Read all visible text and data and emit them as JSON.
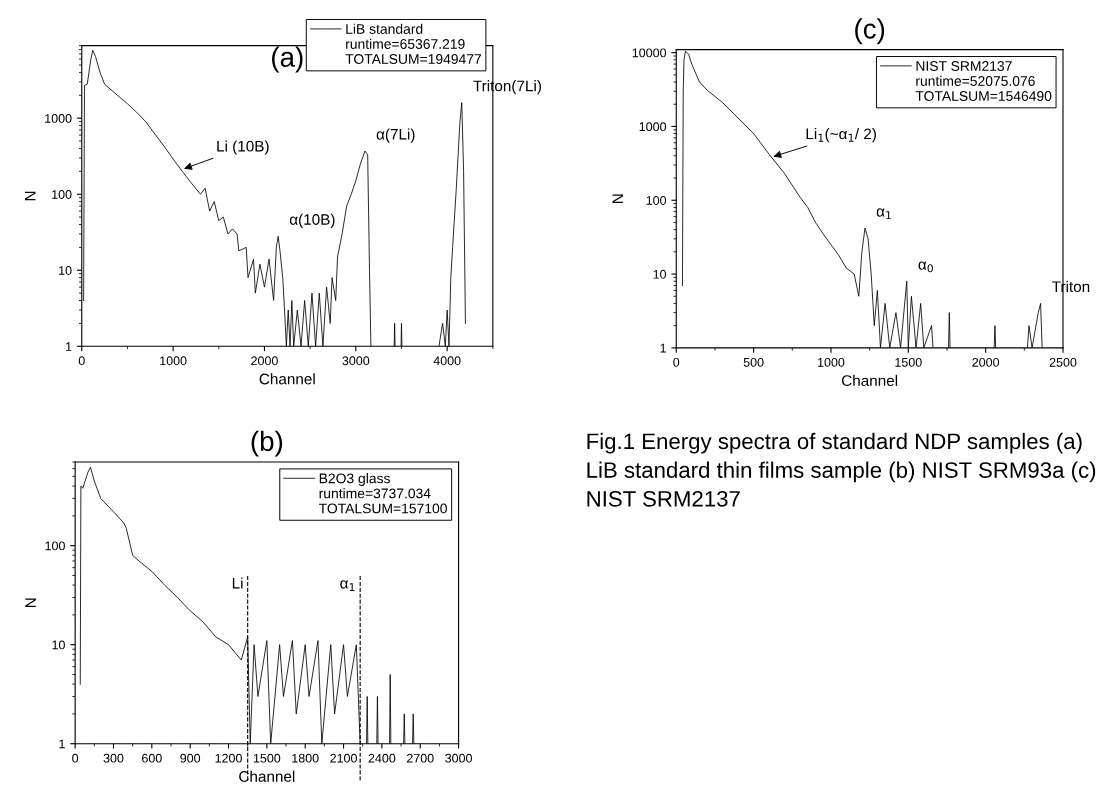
{
  "chart_data": [
    {
      "type": "line",
      "title": "(a)",
      "xlabel": "Channel",
      "ylabel": "N",
      "log": "y",
      "grid": false,
      "legend": "top right",
      "marker": "none",
      "xlim": [
        0,
        4500
      ],
      "xticks": [
        0,
        1000,
        2000,
        3000,
        4000
      ],
      "ylim": [
        1,
        9000
      ],
      "yticks": [
        1,
        10,
        100,
        1000
      ],
      "annotations": [
        "runtime=65367.219",
        "TOTALSUM=1949477",
        {
          "text": "Li (10B)",
          "x": 1090,
          "y": 210
        },
        {
          "text": "α(10B)",
          "x": 2150,
          "y": 28
        },
        {
          "text": "α(7Li)",
          "x": 3100,
          "y": 370
        },
        {
          "text": "Triton(7Li)",
          "x": 4160,
          "y": 1600
        }
      ],
      "series": [
        {
          "name": "LiB standard",
          "color": "#000000",
          "x": [
            20,
            30,
            60,
            100,
            120,
            150,
            200,
            250,
            350,
            500,
            600,
            700,
            800,
            900,
            1000,
            1100,
            1200,
            1300,
            1350,
            1400,
            1450,
            1500,
            1550,
            1600,
            1650,
            1700,
            1720,
            1800,
            1820,
            1880,
            1900,
            1950,
            2000,
            2050,
            2100,
            2130,
            2150,
            2170,
            2200,
            2220,
            2240,
            2260,
            2280,
            2300,
            2320,
            2360,
            2400,
            2440,
            2480,
            2520,
            2560,
            2600,
            2640,
            2680,
            2720,
            2740,
            2780,
            2800,
            2850,
            2900,
            2950,
            3000,
            3050,
            3100,
            3130,
            3150,
            3165,
            3200,
            3420,
            3425,
            3430,
            3450,
            3495,
            3500,
            3505,
            3600,
            3910,
            3950,
            3980,
            4000,
            4020,
            4040,
            4060,
            4100,
            4140,
            4160,
            4180,
            4200
          ],
          "values": [
            4,
            2700,
            2800,
            6000,
            7800,
            6500,
            4000,
            2800,
            2200,
            1550,
            1200,
            900,
            620,
            430,
            290,
            200,
            140,
            100,
            120,
            60,
            80,
            45,
            50,
            30,
            35,
            30,
            18,
            20,
            8,
            14,
            5,
            12,
            6,
            14,
            4,
            20,
            28,
            18,
            8,
            3,
            1,
            3,
            1,
            4,
            1,
            3,
            1,
            4,
            1,
            5,
            1,
            5,
            1,
            6,
            2,
            8,
            4,
            15,
            30,
            70,
            100,
            150,
            250,
            370,
            330,
            10,
            1,
            null,
            1,
            2,
            1,
            null,
            1,
            2,
            1,
            null,
            1,
            2,
            1,
            3,
            1,
            8,
            20,
            120,
            900,
            1600,
            200,
            2
          ]
        }
      ]
    },
    {
      "type": "line",
      "title": "(c)",
      "xlabel": "Channel",
      "ylabel": "N",
      "log": "y",
      "grid": false,
      "legend": "top right",
      "marker": "none",
      "xlim": [
        0,
        2500
      ],
      "xticks": [
        0,
        500,
        1000,
        1500,
        2000,
        2500
      ],
      "ylim": [
        1,
        11000
      ],
      "yticks": [
        1,
        10,
        100,
        1000,
        10000
      ],
      "annotations": [
        "runtime=52075.076",
        "TOTALSUM=1546490",
        {
          "text": "Li$_{1}$(~α$_{1}$/ 2)",
          "x": 610,
          "y": 380
        },
        {
          "text": "α$_{1}$",
          "x": 1220,
          "y": 42
        },
        {
          "text": "α$_{0}$",
          "x": 1490,
          "y": 8
        },
        {
          "text": "Triton",
          "x": 2355,
          "y": 4
        }
      ],
      "series": [
        {
          "name": "NIST SRM2137",
          "color": "#000000",
          "x": [
            40,
            45,
            50,
            60,
            80,
            100,
            150,
            200,
            300,
            400,
            500,
            600,
            700,
            800,
            850,
            900,
            950,
            1000,
            1050,
            1100,
            1150,
            1180,
            1200,
            1220,
            1240,
            1260,
            1280,
            1300,
            1320,
            1350,
            1380,
            1420,
            1450,
            1490,
            1500,
            1520,
            1550,
            1580,
            1600,
            1650,
            1660,
            1700,
            1760,
            1765,
            1770,
            1800,
            2055,
            2060,
            2065,
            2100,
            2270,
            2280,
            2300,
            2340,
            2355,
            2365
          ],
          "values": [
            7,
            3000,
            8000,
            10500,
            9500,
            7000,
            4000,
            3100,
            2100,
            1300,
            800,
            420,
            230,
            110,
            80,
            50,
            35,
            25,
            18,
            12,
            10,
            5,
            20,
            42,
            30,
            10,
            2,
            6,
            1,
            4,
            1,
            3,
            1,
            8,
            1,
            5,
            1,
            4,
            1,
            2,
            1,
            null,
            1,
            3,
            1,
            null,
            1,
            2,
            1,
            null,
            1,
            2,
            1,
            3,
            4,
            1
          ]
        }
      ]
    },
    {
      "type": "line",
      "title": "(b)",
      "xlabel": "Channel",
      "ylabel": "N",
      "log": "y",
      "grid": false,
      "legend": "top right",
      "marker": "none",
      "xlim": [
        0,
        3000
      ],
      "xticks": [
        0,
        300,
        600,
        900,
        1200,
        1500,
        1800,
        2100,
        2400,
        2700,
        3000
      ],
      "ylim": [
        1,
        700
      ],
      "yticks": [
        1,
        10,
        100
      ],
      "annotations": [
        "runtime=3737.034",
        "TOTALSUM=157100"
      ],
      "ref_lines": [
        {
          "axis": "x",
          "value": 1350,
          "label": "Li",
          "color": "#000000",
          "line_style": "dashed"
        },
        {
          "axis": "x",
          "value": 2230,
          "label": "α$_{1}$",
          "color": "#000000",
          "line_style": "dashed"
        }
      ],
      "series": [
        {
          "name": "B2O3 glass",
          "color": "#000000",
          "x": [
            40,
            45,
            60,
            100,
            120,
            150,
            200,
            300,
            380,
            400,
            450,
            500,
            600,
            700,
            800,
            900,
            1000,
            1100,
            1200,
            1300,
            1350,
            1370,
            1400,
            1430,
            1500,
            1530,
            1600,
            1630,
            1700,
            1730,
            1800,
            1830,
            1900,
            1930,
            2000,
            2030,
            2100,
            2130,
            2200,
            2230,
            2250,
            2280,
            2285,
            2290,
            2320,
            2360,
            2365,
            2370,
            2400,
            2460,
            2465,
            2470,
            2500,
            2570,
            2575,
            2580,
            2600,
            2640,
            2645,
            2650
          ],
          "values": [
            4,
            400,
            380,
            550,
            620,
            450,
            300,
            220,
            170,
            150,
            80,
            70,
            55,
            40,
            30,
            22,
            17,
            12,
            10,
            7,
            12,
            1,
            10,
            3,
            11,
            1,
            10,
            3,
            11,
            2,
            10,
            3,
            11,
            1,
            10,
            2,
            10,
            3,
            10,
            1,
            null,
            1,
            3,
            1,
            null,
            1,
            3,
            1,
            null,
            1,
            5,
            1,
            null,
            1,
            2,
            1,
            null,
            1,
            2,
            1
          ]
        }
      ]
    },
    {
      "type": "other",
      "annotations": [
        "Fig.1 Energy spectra of standard NDP samples (a) LiB standard thin films sample (b) NIST SRM93a (c) NIST SRM2137"
      ]
    }
  ]
}
